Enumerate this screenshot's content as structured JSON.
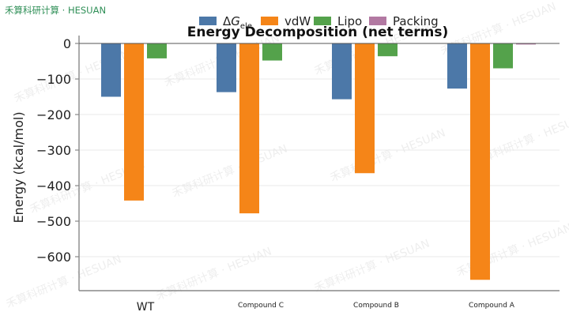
{
  "brand": "禾算科研计算 · HESUAN",
  "watermark": "禾算科研计算 · HESUAN",
  "colors": {
    "dG_ele": "#4c78a8",
    "vdW": "#f58518",
    "Lipo": "#54a24b",
    "Packing": "#b279a2",
    "grid": "#e8e8e8",
    "axis": "#888888",
    "zero_line": "#555555"
  },
  "chart_data": {
    "type": "bar",
    "title": "Energy Decomposition (net terms)",
    "xlabel": "",
    "ylabel": "Energy (kcal/mol)",
    "ylim": [
      -700,
      0
    ],
    "yticks": [
      0,
      -100,
      -200,
      -300,
      -400,
      -500,
      -600
    ],
    "ytick_labels": [
      "0",
      "−100",
      "−200",
      "−300",
      "−400",
      "−500",
      "−600"
    ],
    "grid": true,
    "legend_position": "top",
    "categories": [
      "WT",
      "Compound C",
      "Compound B",
      "Compound A"
    ],
    "series": [
      {
        "name": "ΔG",
        "name_sub": "ele",
        "color_key": "dG_ele",
        "values": [
          -150,
          -137,
          -157,
          -127
        ]
      },
      {
        "name": "vdW",
        "name_sub": "",
        "color_key": "vdW",
        "values": [
          -442,
          -478,
          -365,
          -665
        ]
      },
      {
        "name": "Lipo",
        "name_sub": "",
        "color_key": "Lipo",
        "values": [
          -42,
          -48,
          -36,
          -70
        ]
      },
      {
        "name": "Packing",
        "name_sub": "",
        "color_key": "Packing",
        "values": [
          0,
          0,
          0,
          -3
        ]
      }
    ]
  }
}
